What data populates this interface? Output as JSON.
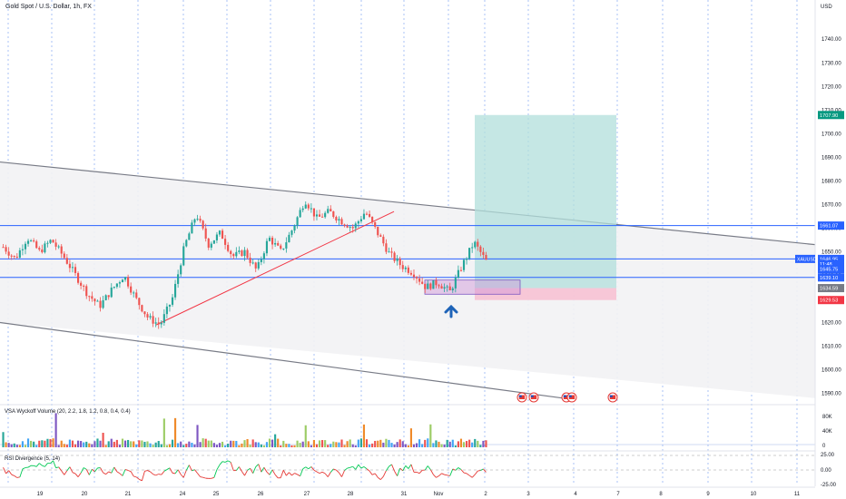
{
  "title": "Gold Spot / U.S. Dollar, 1h, FX",
  "colors": {
    "up": "#26a69a",
    "down": "#ef5350",
    "hline": "#2962ff",
    "target": "#b2dfdb",
    "stop": "#f8bbd0",
    "zone": "#ce93d8",
    "channel": "#787b86",
    "trendline": "#f23645",
    "vsa_up": "#ef8a2a",
    "vsa_down": "#7e57c2",
    "rsi_green": "#00c853",
    "rsi_red": "#e53935",
    "arrow": "#1e63b8"
  },
  "price_axis": {
    "unit": "USD",
    "ticks": [
      1590,
      1600,
      1610,
      1620,
      1630,
      1640,
      1650,
      1660,
      1670,
      1680,
      1690,
      1700,
      1710,
      1720,
      1730,
      1740
    ],
    "range": [
      1586,
      1752
    ]
  },
  "price_labels": [
    {
      "text": "1707.90",
      "price": 1707.9,
      "color": "#089981"
    },
    {
      "text": "1661.07",
      "price": 1661.07,
      "color": "#2962ff"
    },
    {
      "text": "XAUUSD",
      "price": 1646.95,
      "color": "#2962ff"
    },
    {
      "text": "1646.95",
      "price": 1646.95,
      "color": "#2962ff"
    },
    {
      "text": "11:48",
      "price": 1644.8,
      "color": "#2962ff"
    },
    {
      "text": "1645.75",
      "price": 1642.6,
      "color": "#2962ff"
    },
    {
      "text": "1639.10",
      "price": 1639.1,
      "color": "#2962ff"
    },
    {
      "text": "1634.59",
      "price": 1634.59,
      "color": "#787b86"
    },
    {
      "text": "1629.53",
      "price": 1629.53,
      "color": "#f23645"
    }
  ],
  "horizontal_levels": [
    1661.07,
    1646.95,
    1639.1
  ],
  "time_axis": [
    "19",
    "20",
    "21",
    "24",
    "25",
    "26",
    "27",
    "28",
    "31",
    "Nov",
    "2",
    "3",
    "4",
    "7",
    "8",
    "9",
    "10",
    "11"
  ],
  "vsa": {
    "label": "VSA Wyckoff Volume (20, 2.2, 1.8, 1.2, 0.8, 0.4, 0.4)",
    "ticks": [
      "80K",
      "40K",
      "0"
    ]
  },
  "rsi": {
    "label": "RSI Divergence (5, 14)",
    "ticks": [
      "25.00",
      "0.00",
      "-25.00"
    ]
  },
  "chart_data": {
    "type": "candlestick",
    "title": "Gold Spot / U.S. Dollar, 1h, FX",
    "y_unit": "USD",
    "ylim": [
      1586,
      1752
    ],
    "x_labels": [
      "19",
      "20",
      "21",
      "24",
      "25",
      "26",
      "27",
      "28",
      "31",
      "Nov",
      "2",
      "3",
      "4",
      "7",
      "8",
      "9",
      "10",
      "11"
    ],
    "price_path": [
      1652,
      1647,
      1656,
      1650,
      1655,
      1648,
      1640,
      1632,
      1627,
      1634,
      1640,
      1630,
      1622,
      1619,
      1630,
      1652,
      1666,
      1653,
      1658,
      1648,
      1650,
      1642,
      1656,
      1650,
      1660,
      1672,
      1664,
      1667,
      1663,
      1660,
      1667,
      1658,
      1649,
      1644,
      1641,
      1635,
      1637,
      1633,
      1644,
      1654,
      1646
    ],
    "channel": {
      "upper": [
        1688,
        1653
      ],
      "lower": [
        1620,
        1588
      ]
    },
    "trendline": [
      1619,
      1667
    ],
    "position": {
      "entry": 1634.59,
      "target": 1707.9,
      "stop": 1629.53
    },
    "zone": [
      1632,
      1638
    ],
    "levels": [
      1661.07,
      1646.95,
      1639.1
    ],
    "last_price": 1646.95
  }
}
